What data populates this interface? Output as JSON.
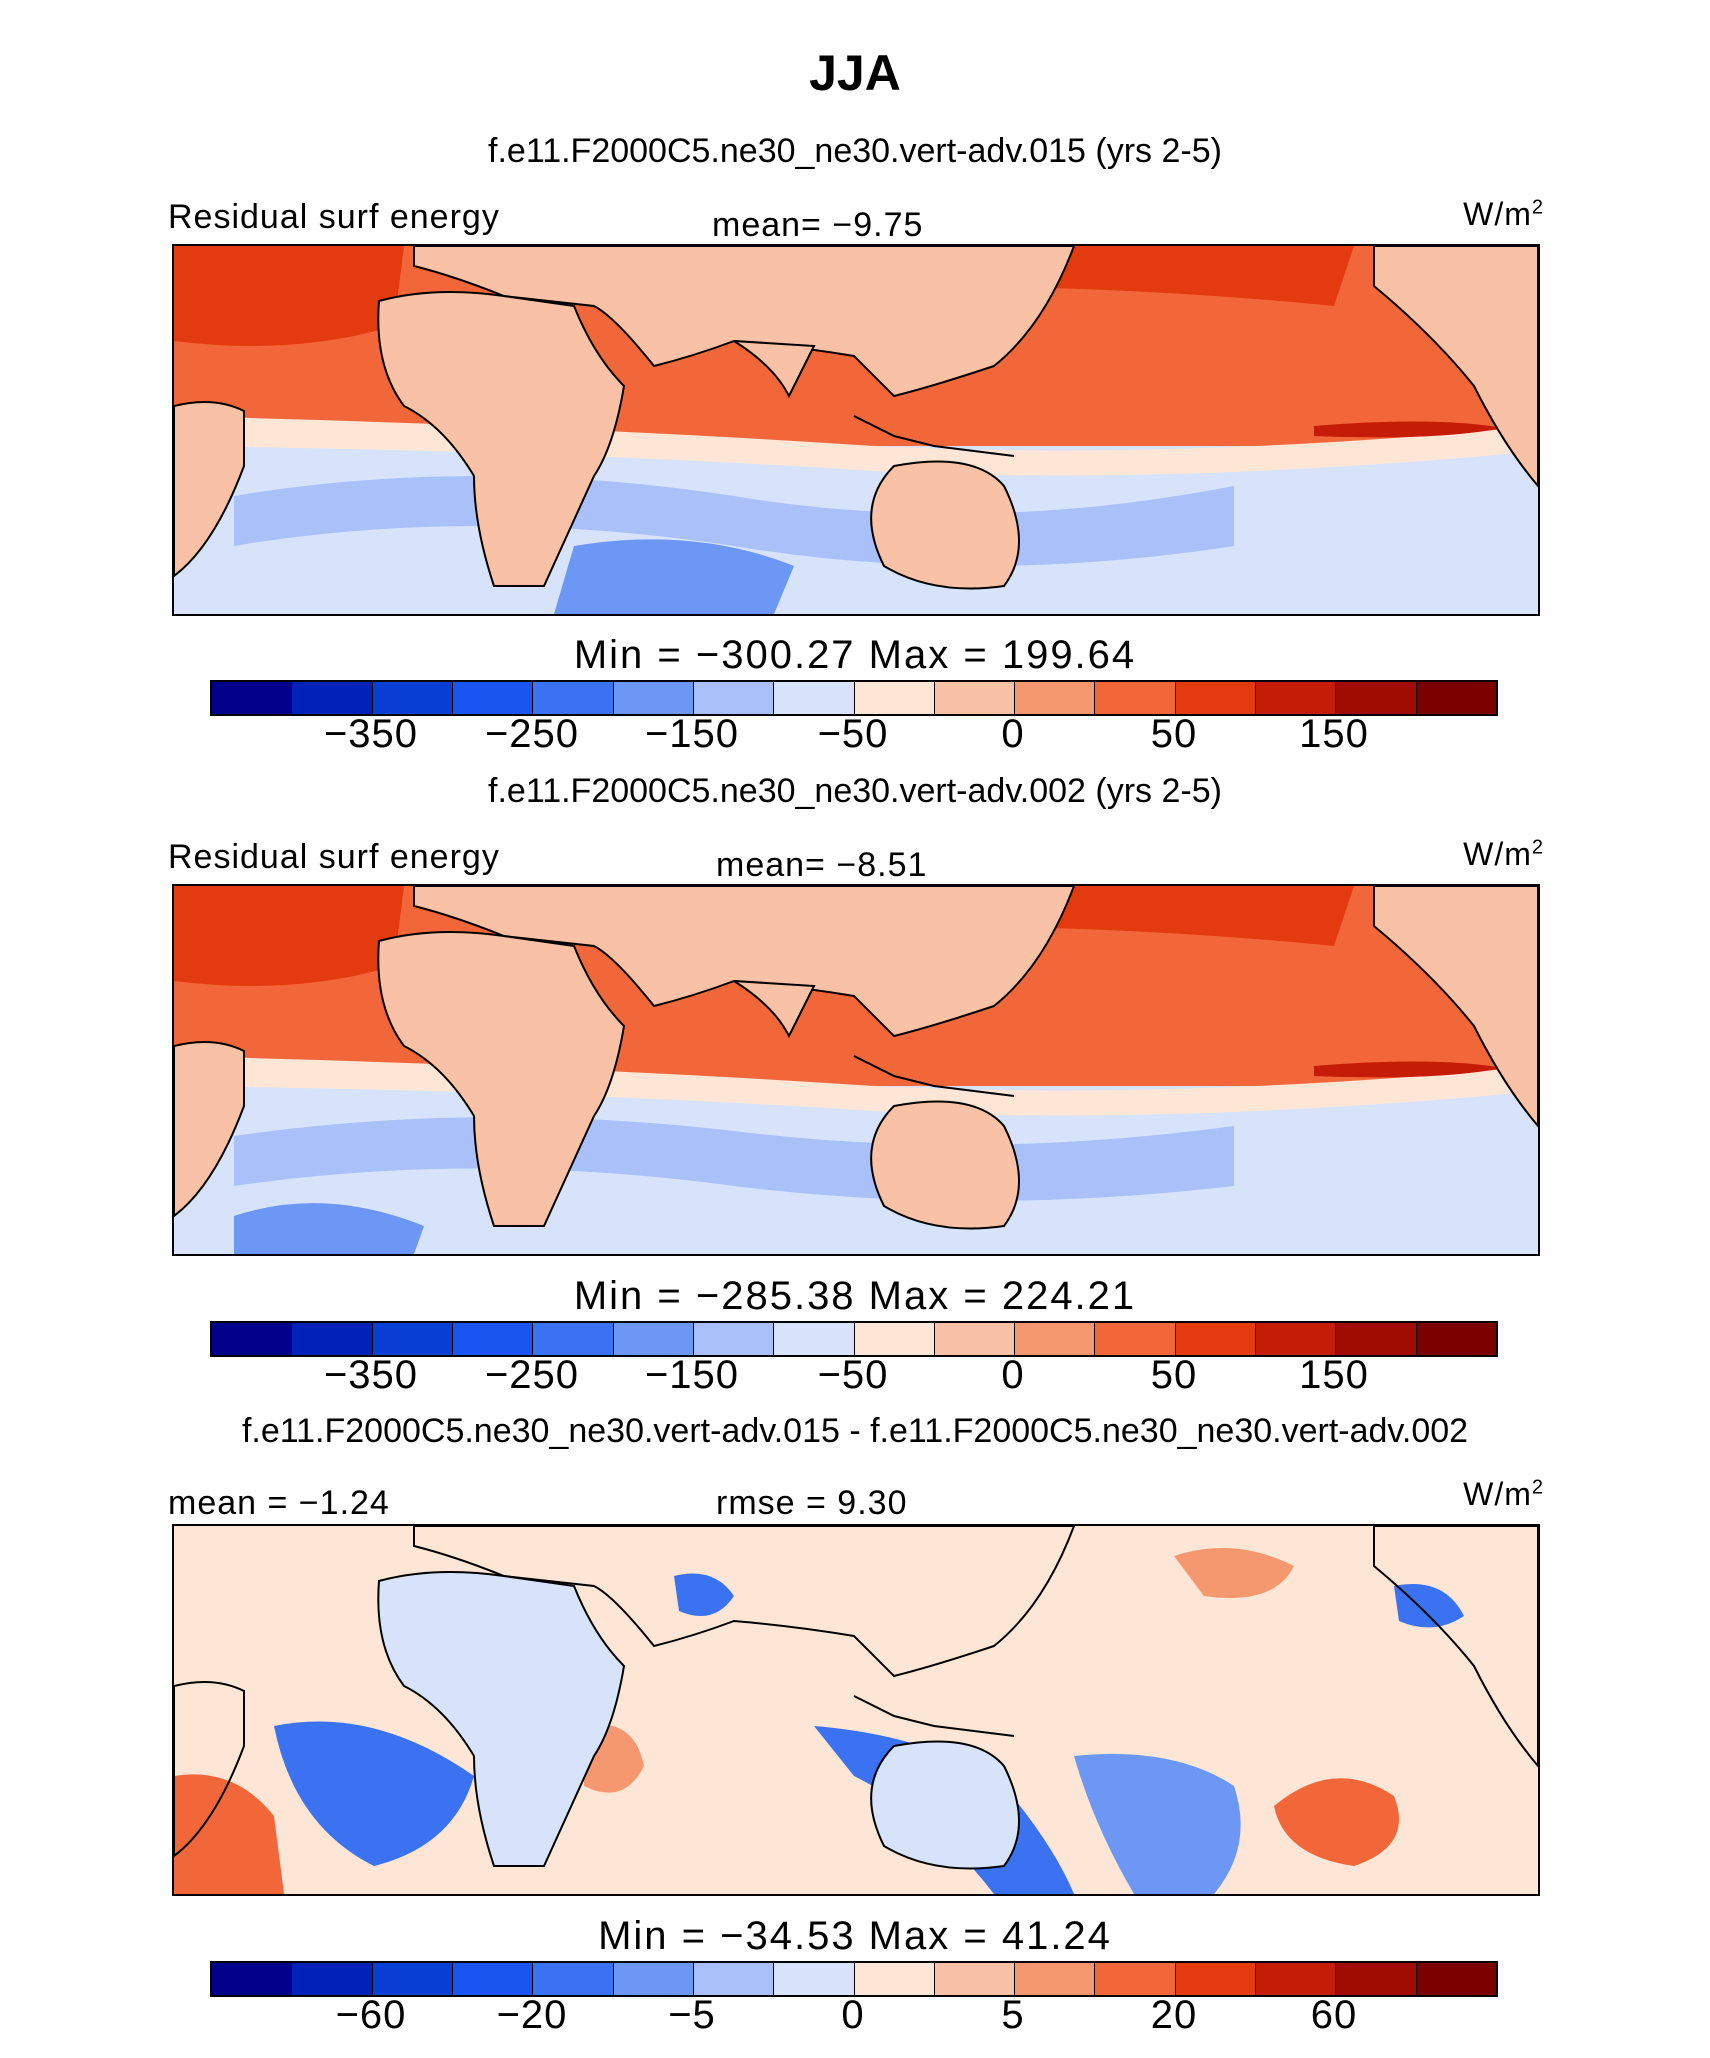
{
  "figure": {
    "title": "JJA",
    "colors": {
      "palette": [
        "#00008b",
        "#0022b8",
        "#0a3fd6",
        "#1a55f0",
        "#3a72f2",
        "#6d97f4",
        "#a9c1f8",
        "#d6e3fb",
        "#fde6d6",
        "#f9c1a5",
        "#f6986f",
        "#f2673a",
        "#e43a10",
        "#c41c06",
        "#a00b02",
        "#7b0000"
      ],
      "land": "#f9c1a5"
    }
  },
  "panels": [
    {
      "title": "f.e11.F2000C5.ne30_ne30.vert-adv.015 (yrs 2-5)",
      "left_label": "Residual surf energy",
      "mid_label": "mean=   −9.75",
      "units": "W/m",
      "units_sup": "2",
      "minmax": "Min  =  −300.27  Max  =  199.64",
      "colorbar_ticks": [
        "−350",
        "−250",
        "−150",
        "−50",
        "0",
        "50",
        "150"
      ]
    },
    {
      "title": "f.e11.F2000C5.ne30_ne30.vert-adv.002 (yrs 2-5)",
      "left_label": "Residual surf energy",
      "mid_label": "mean=   −8.51",
      "units": "W/m",
      "units_sup": "2",
      "minmax": "Min  =  −285.38  Max  =  224.21",
      "colorbar_ticks": [
        "−350",
        "−250",
        "−150",
        "−50",
        "0",
        "50",
        "150"
      ]
    },
    {
      "title": "f.e11.F2000C5.ne30_ne30.vert-adv.015 - f.e11.F2000C5.ne30_ne30.vert-adv.002",
      "left_label": "mean  =   −1.24",
      "mid_label": "rmse  =      9.30",
      "units": "W/m",
      "units_sup": "2",
      "minmax": "Min  =  −34.53  Max  =    41.24",
      "colorbar_ticks": [
        "−60",
        "−20",
        "−5",
        "0",
        "5",
        "20",
        "60"
      ]
    }
  ]
}
